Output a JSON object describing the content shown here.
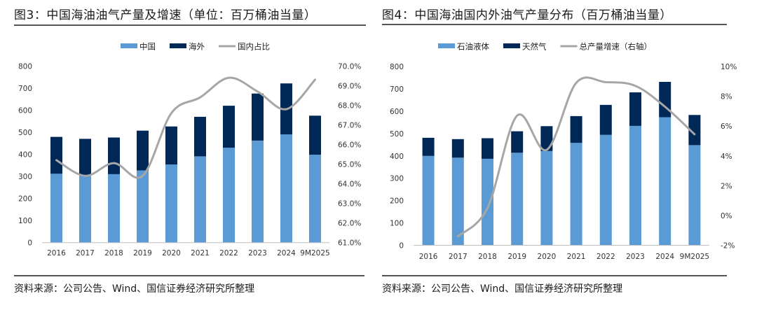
{
  "figures": [
    {
      "title": "图3：中国海油油气产量及增速（单位：百万桶油当量）",
      "source": "资料来源：公司公告、Wind、国信证券经济研究所整理"
    },
    {
      "title": "图4：中国海油国内外油气产量分布（百万桶油当量）",
      "source": "资料来源：公司公告、Wind、国信证券经济研究所整理"
    }
  ],
  "colors": {
    "light_blue": "#5B9BD5",
    "navy": "#002856",
    "gray_line": "#A6A6A6",
    "axis": "#BFBFBF"
  },
  "chart_data": [
    {
      "type": "bar",
      "stacked": true,
      "title": "图3：中国海油油气产量及增速（单位：百万桶油当量）",
      "categories": [
        "2016",
        "2017",
        "2018",
        "2019",
        "2020",
        "2021",
        "2022",
        "2023",
        "2024",
        "9M2025"
      ],
      "series": [
        {
          "name": "中国",
          "kind": "bar",
          "axis": "left",
          "color": "#5B9BD5",
          "values": [
            312,
            306,
            310,
            327,
            354,
            391,
            430,
            462,
            490,
            398
          ]
        },
        {
          "name": "海外",
          "kind": "bar",
          "axis": "left",
          "color": "#002856",
          "values": [
            167,
            164,
            166,
            180,
            172,
            179,
            190,
            213,
            231,
            177
          ]
        },
        {
          "name": "国内占比",
          "kind": "line",
          "axis": "right",
          "color": "#A6A6A6",
          "values": [
            65.2,
            64.4,
            65.05,
            64.4,
            67.6,
            68.4,
            69.4,
            68.7,
            67.8,
            69.3
          ]
        }
      ],
      "y_left": {
        "min": 0,
        "max": 800,
        "step": 100,
        "ticks": [
          "0",
          "100",
          "200",
          "300",
          "400",
          "500",
          "600",
          "700",
          "800"
        ]
      },
      "y_right": {
        "min": 61,
        "max": 70,
        "step": 1,
        "ticks": [
          "61.0%",
          "62.0%",
          "63.0%",
          "64.0%",
          "65.0%",
          "66.0%",
          "67.0%",
          "68.0%",
          "69.0%",
          "70.0%"
        ]
      },
      "legend": {
        "position": "top-center",
        "entries": [
          "中国",
          "海外",
          "国内占比"
        ]
      },
      "grid": false,
      "xlabel": "",
      "ylabel": ""
    },
    {
      "type": "bar",
      "stacked": true,
      "title": "图4：中国海油国内外油气产量分布（百万桶油当量）",
      "categories": [
        "2016",
        "2017",
        "2018",
        "2019",
        "2020",
        "2021",
        "2022",
        "2023",
        "2024",
        "9M2025"
      ],
      "series": [
        {
          "name": "石油液体",
          "kind": "bar",
          "axis": "left",
          "color": "#5B9BD5",
          "values": [
            400,
            392,
            387,
            414,
            422,
            458,
            494,
            534,
            573,
            448
          ]
        },
        {
          "name": "天然气",
          "kind": "bar",
          "axis": "left",
          "color": "#002856",
          "values": [
            81,
            83,
            92,
            96,
            111,
            120,
            134,
            150,
            158,
            135
          ]
        },
        {
          "name": "总产量增速（右轴）",
          "kind": "line",
          "axis": "right",
          "color": "#A6A6A6",
          "values": [
            null,
            -1.4,
            0.5,
            6.7,
            4.4,
            8.9,
            8.95,
            8.7,
            7.3,
            5.45
          ]
        }
      ],
      "y_left": {
        "min": 0,
        "max": 800,
        "step": 100,
        "ticks": [
          "0",
          "100",
          "200",
          "300",
          "400",
          "500",
          "600",
          "700",
          "800"
        ]
      },
      "y_right": {
        "min": -2,
        "max": 10,
        "step": 2,
        "ticks": [
          "-2%",
          "0%",
          "2%",
          "4%",
          "6%",
          "8%",
          "10%"
        ]
      },
      "legend": {
        "position": "top-center",
        "entries": [
          "石油液体",
          "天然气",
          "总产量增速（右轴）"
        ]
      },
      "grid": false,
      "xlabel": "",
      "ylabel": ""
    }
  ]
}
